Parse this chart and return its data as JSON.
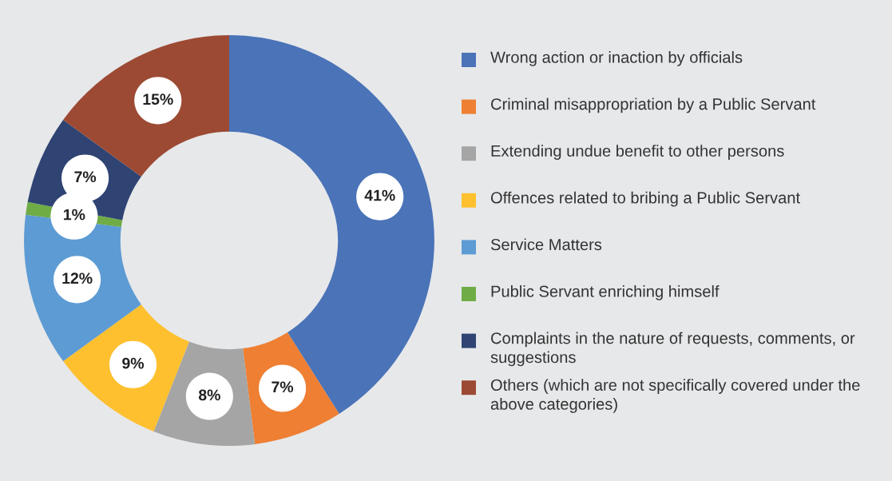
{
  "chart_data": {
    "type": "donut",
    "categories": [
      "Wrong action or inaction by officials",
      "Criminal misappropriation by a Public Servant",
      "Extending undue benefit to other persons",
      "Offences related to bribing a Public Servant",
      "Service Matters",
      "Public Servant enriching himself",
      "Complaints in the nature of requests, comments, or suggestions",
      "Others (which are not specifically covered under the above categories)"
    ],
    "values": [
      41,
      7,
      8,
      9,
      12,
      1,
      7,
      15
    ],
    "value_labels": [
      "41%",
      "7%",
      "8%",
      "9%",
      "12%",
      "1%",
      "7%",
      "15%"
    ],
    "colors": [
      "#4a73b8",
      "#ee7f33",
      "#a5a5a5",
      "#fec02f",
      "#5d9bd4",
      "#6fac46",
      "#2f4473",
      "#9c4a33"
    ],
    "legend": "right"
  }
}
